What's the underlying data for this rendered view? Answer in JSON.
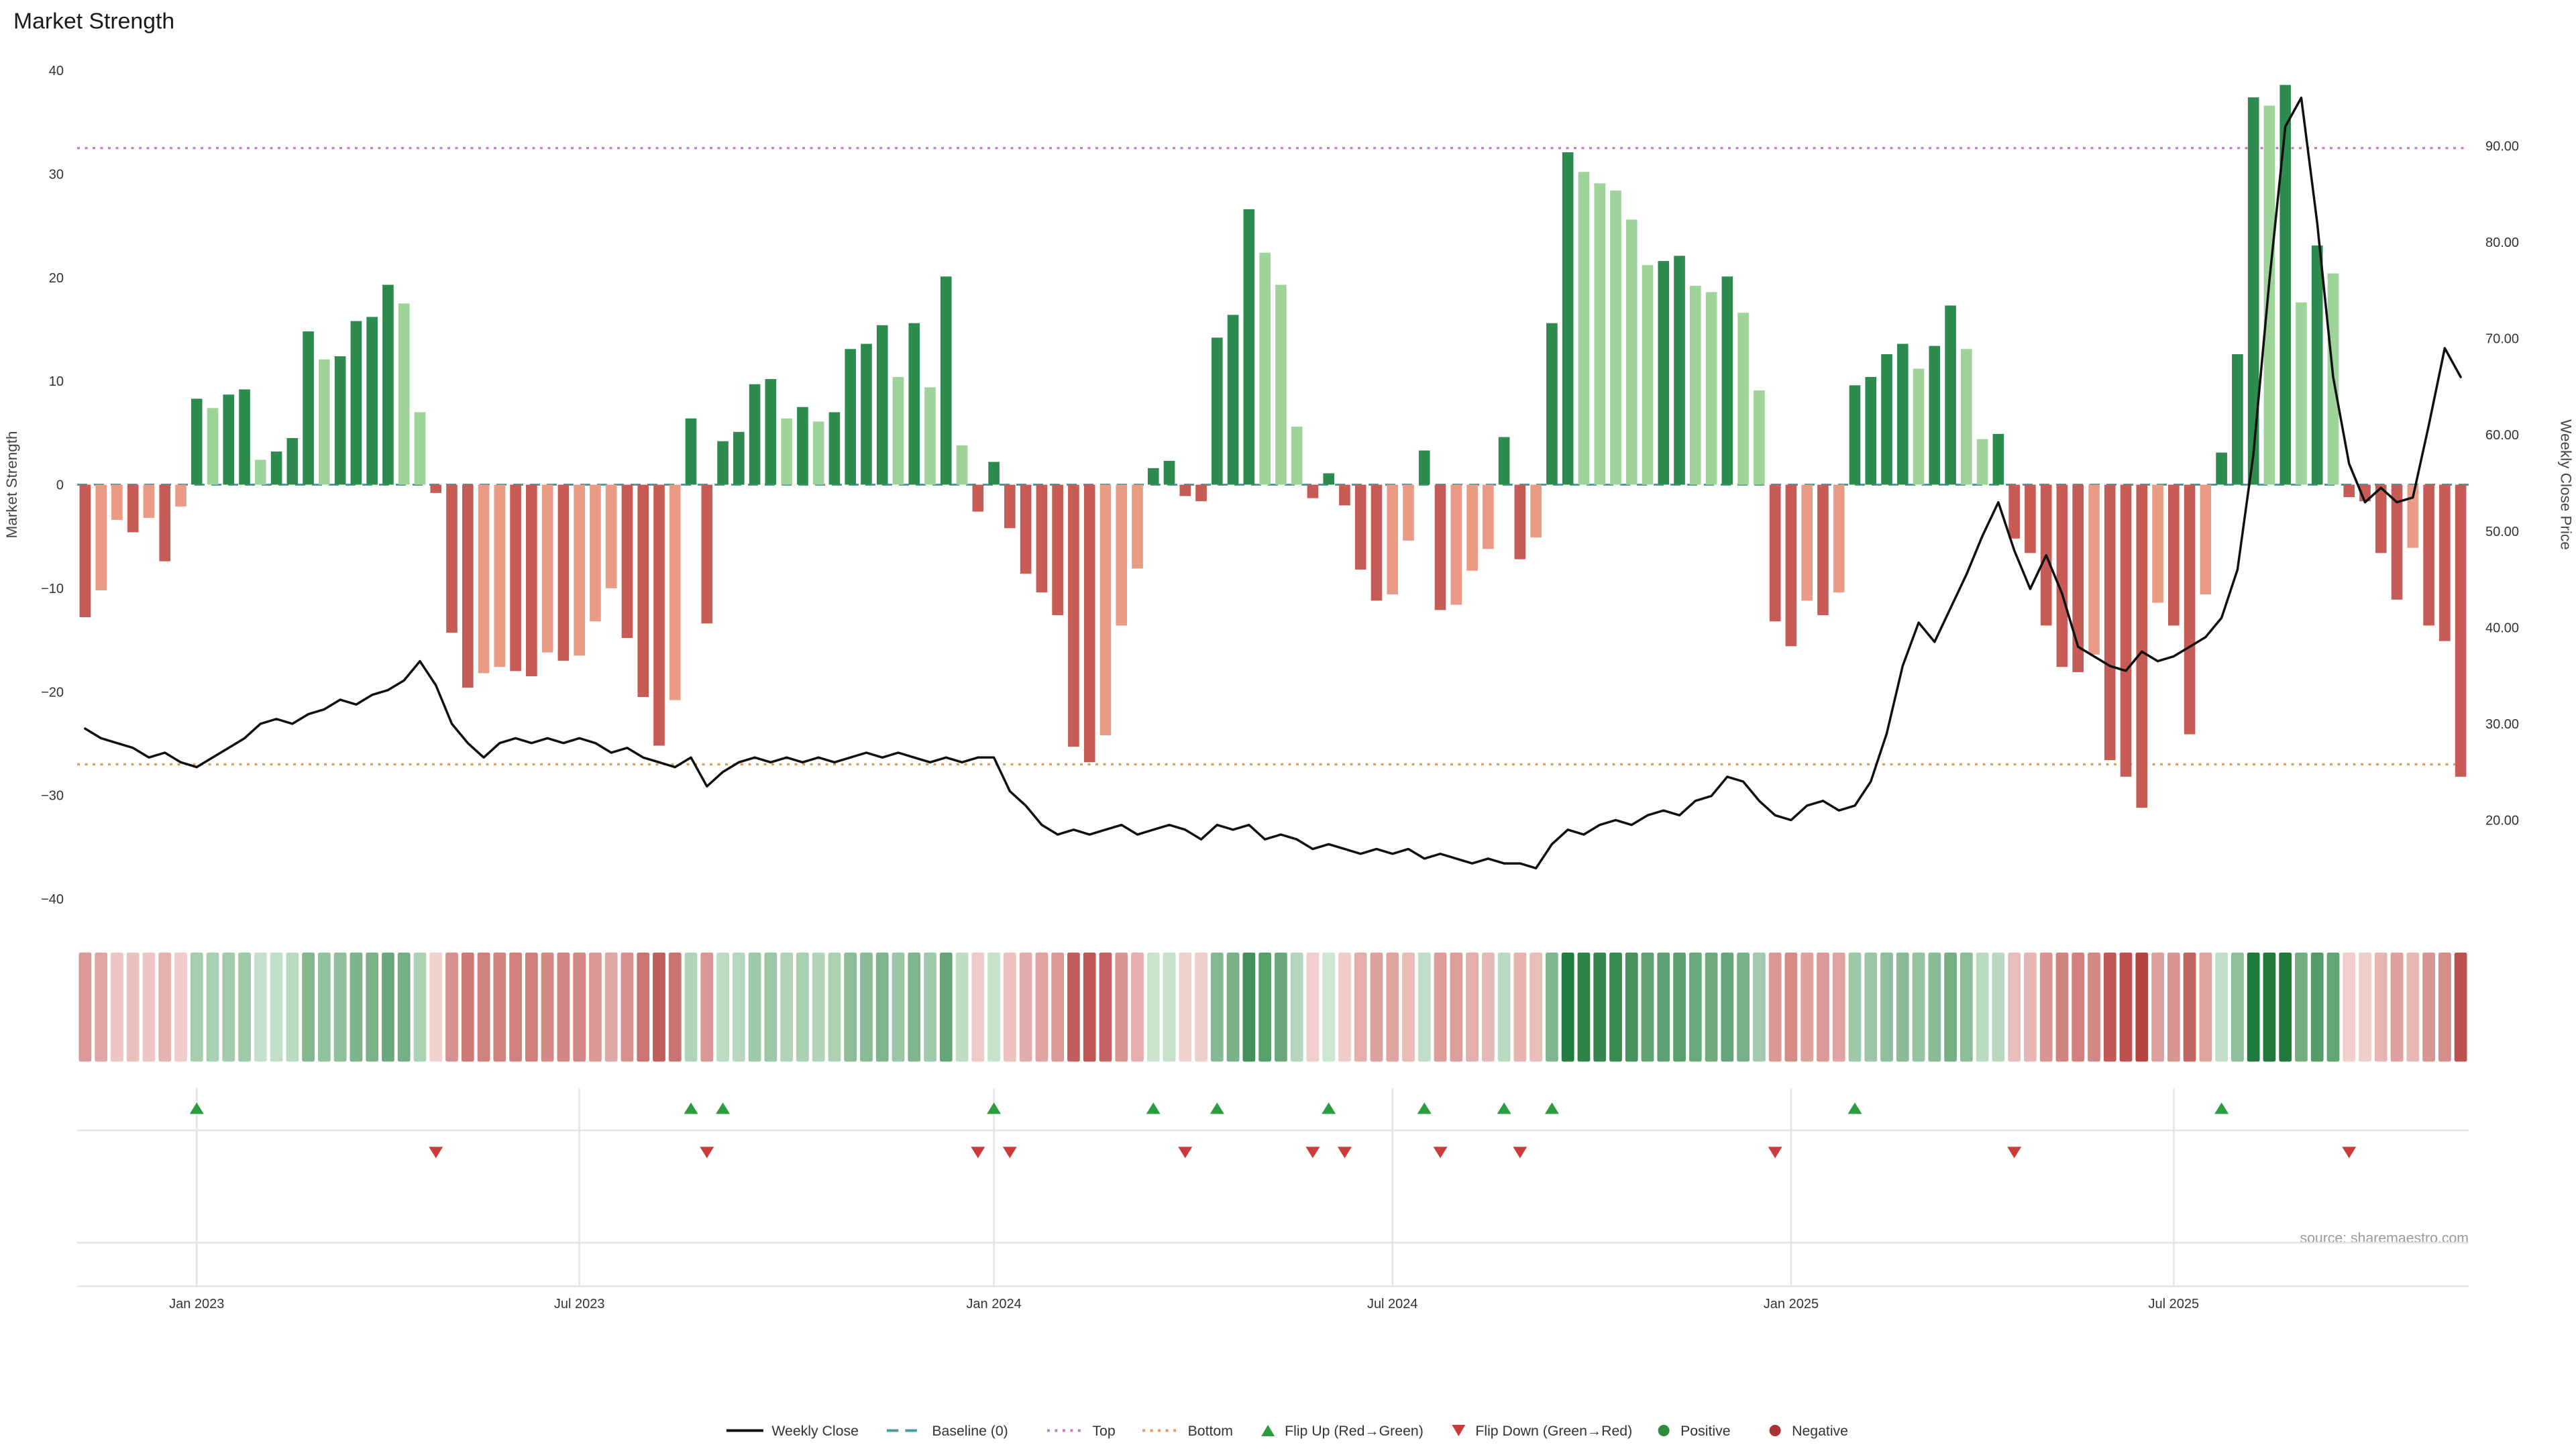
{
  "title": "Market Strength",
  "source": "source: sharemaestro.com",
  "colors": {
    "bar_positive_strong": "#2e8b4f",
    "bar_positive_light": "#9ed49a",
    "bar_negative_strong": "#c75b55",
    "bar_negative_light": "#ea9b85",
    "line": "#111111",
    "baseline": "#4f9b9b",
    "top_line": "#bf7fbf",
    "bottom_line": "#dd9f57",
    "flip_up": "#2a9d3f",
    "flip_down": "#cc3b3b",
    "heat_green_dark": "#1f7a3c",
    "heat_green_light": "#e2f3e2",
    "heat_red_dark": "#b33a38",
    "heat_red_light": "#f9e3df",
    "grid": "#e4e4e4",
    "tick_text": "#333333",
    "source_text": "#9a9a9a"
  },
  "legend": [
    {
      "label": "Weekly Close",
      "glyph": "line",
      "color": "#111111"
    },
    {
      "label": "Baseline (0)",
      "glyph": "dash",
      "color": "#4f9b9b"
    },
    {
      "label": "Top",
      "glyph": "dot",
      "color": "#bf7fbf"
    },
    {
      "label": "Bottom",
      "glyph": "dot",
      "color": "#dd9f57"
    },
    {
      "label": "Flip Up (Red→Green)",
      "glyph": "tri-up",
      "color": "#2a9d3f"
    },
    {
      "label": "Flip Down (Green→Red)",
      "glyph": "tri-down",
      "color": "#cc3b3b"
    },
    {
      "label": "Positive",
      "glyph": "circle",
      "color": "#2e8b3d"
    },
    {
      "label": "Negative",
      "glyph": "circle",
      "color": "#a93232"
    }
  ],
  "chart_data": {
    "type": "bar+line",
    "frequency": "weekly",
    "left_axis": {
      "label": "Market Strength",
      "range": [
        -40,
        40
      ],
      "ticks": [
        {
          "label": "40",
          "v": 40
        },
        {
          "label": "30",
          "v": 30
        },
        {
          "label": "20",
          "v": 20
        },
        {
          "label": "10",
          "v": 10
        },
        {
          "label": "0",
          "v": 0
        },
        {
          "label": "−10",
          "v": -10
        },
        {
          "label": "−20",
          "v": -20
        },
        {
          "label": "−30",
          "v": -30
        },
        {
          "label": "−40",
          "v": -40
        }
      ]
    },
    "right_axis": {
      "label": "Weekly Close Price",
      "ticks": [
        {
          "label": "90.00",
          "v": 90
        },
        {
          "label": "80.00",
          "v": 80
        },
        {
          "label": "70.00",
          "v": 70
        },
        {
          "label": "60.00",
          "v": 60
        },
        {
          "label": "50.00",
          "v": 50
        },
        {
          "label": "40.00",
          "v": 40
        },
        {
          "label": "30.00",
          "v": 30
        },
        {
          "label": "20.00",
          "v": 20
        }
      ]
    },
    "x_ticks": [
      {
        "label": "Jan 2023",
        "week": 7
      },
      {
        "label": "Jul 2023",
        "week": 31
      },
      {
        "label": "Jan 2024",
        "week": 57
      },
      {
        "label": "Jul 2024",
        "week": 82
      },
      {
        "label": "Jan 2025",
        "week": 107
      },
      {
        "label": "Jul 2025",
        "week": 131
      }
    ],
    "reference_lines": {
      "baseline": 0,
      "top": 32.5,
      "bottom": -27
    },
    "bar_series": {
      "name": "Market Strength",
      "values": [
        -12.8,
        -10.2,
        -3.4,
        -4.6,
        -3.2,
        -7.4,
        -2.1,
        8.3,
        7.4,
        8.7,
        9.2,
        2.4,
        3.2,
        4.5,
        14.8,
        12.1,
        12.4,
        15.8,
        16.2,
        19.3,
        17.5,
        7.0,
        -0.8,
        -14.3,
        -19.6,
        -18.2,
        -17.6,
        -18.0,
        -18.5,
        -16.2,
        -17.0,
        -16.5,
        -13.2,
        -10.0,
        -14.8,
        -20.5,
        -25.2,
        -20.8,
        6.4,
        -13.4,
        4.2,
        5.1,
        9.7,
        10.2,
        6.4,
        7.5,
        6.1,
        7.0,
        13.1,
        13.6,
        15.4,
        10.4,
        15.6,
        9.4,
        20.1,
        3.8,
        -2.6,
        2.2,
        -4.2,
        -8.6,
        -10.4,
        -12.6,
        -25.3,
        -26.8,
        -24.2,
        -13.6,
        -8.1,
        1.6,
        2.3,
        -1.1,
        -1.6,
        14.2,
        16.4,
        26.6,
        22.4,
        19.3,
        5.6,
        -1.3,
        1.1,
        -2.0,
        -8.2,
        -11.2,
        -10.6,
        -5.4,
        3.3,
        -12.1,
        -11.6,
        -8.3,
        -6.2,
        4.6,
        -7.2,
        -5.1,
        15.6,
        32.1,
        30.2,
        29.1,
        28.4,
        25.6,
        21.2,
        21.6,
        22.1,
        19.2,
        18.6,
        20.1,
        16.6,
        9.1,
        -13.2,
        -15.6,
        -11.2,
        -12.6,
        -10.4,
        9.6,
        10.4,
        12.6,
        13.6,
        11.2,
        13.4,
        17.3,
        13.1,
        4.4,
        4.9,
        -5.2,
        -6.6,
        -13.6,
        -17.6,
        -18.1,
        -16.4,
        -26.6,
        -28.2,
        -31.2,
        -11.4,
        -13.6,
        -24.1,
        -10.6,
        3.1,
        12.6,
        37.4,
        36.6,
        38.6,
        17.6,
        23.1,
        20.4,
        -1.2,
        -1.6,
        -6.6,
        -11.1,
        -6.1,
        -13.6,
        -15.1,
        -28.2
      ]
    },
    "line_series": {
      "name": "Weekly Close",
      "axis": "right",
      "values": [
        29.5,
        28.5,
        28.0,
        27.5,
        26.5,
        27.0,
        26.0,
        25.5,
        26.5,
        27.5,
        28.5,
        30.0,
        30.5,
        30.0,
        31.0,
        31.5,
        32.5,
        32.0,
        33.0,
        33.5,
        34.5,
        36.5,
        34.0,
        30.0,
        28.0,
        26.5,
        28.0,
        28.5,
        28.0,
        28.5,
        28.0,
        28.5,
        28.0,
        27.0,
        27.5,
        26.5,
        26.0,
        25.5,
        26.5,
        23.5,
        25.0,
        26.0,
        26.5,
        26.0,
        26.5,
        26.0,
        26.5,
        26.0,
        26.5,
        27.0,
        26.5,
        27.0,
        26.5,
        26.0,
        26.5,
        26.0,
        26.5,
        26.5,
        23.0,
        21.5,
        19.5,
        18.5,
        19.0,
        18.5,
        19.0,
        19.5,
        18.5,
        19.0,
        19.5,
        19.0,
        18.0,
        19.5,
        19.0,
        19.5,
        18.0,
        18.5,
        18.0,
        17.0,
        17.5,
        17.0,
        16.5,
        17.0,
        16.5,
        17.0,
        16.0,
        16.5,
        16.0,
        15.5,
        16.0,
        15.5,
        15.5,
        15.0,
        17.5,
        19.0,
        18.5,
        19.5,
        20.0,
        19.5,
        20.5,
        21.0,
        20.5,
        22.0,
        22.5,
        24.5,
        24.0,
        22.0,
        20.5,
        20.0,
        21.5,
        22.0,
        21.0,
        21.5,
        24.0,
        29.0,
        36.0,
        40.5,
        38.5,
        42.0,
        45.5,
        49.5,
        53.0,
        48.0,
        44.0,
        47.5,
        43.5,
        38.0,
        37.0,
        36.0,
        35.5,
        37.5,
        36.5,
        37.0,
        38.0,
        39.0,
        41.0,
        46.0,
        58.0,
        76.0,
        92.0,
        95.0,
        82.0,
        66.0,
        57.0,
        53.0,
        54.5,
        53.0,
        53.5,
        61.0,
        69.0,
        66.0
      ]
    }
  }
}
